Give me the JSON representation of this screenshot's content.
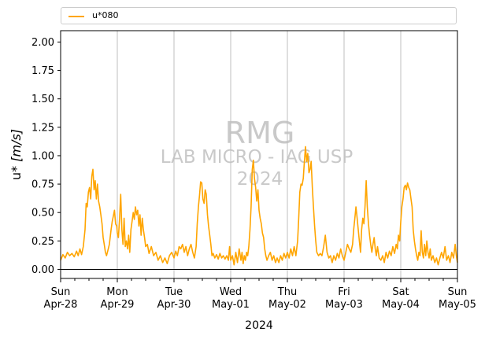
{
  "chart_data": {
    "type": "line",
    "ylabel_prefix": "u* ",
    "ylabel_unit": "[m/s]",
    "xlabel": "2024",
    "ylim": [
      -0.08,
      2.1
    ],
    "xlim_days": [
      "2024-04-28",
      "2024-05-05"
    ],
    "yticks": [
      "0.00",
      "0.25",
      "0.50",
      "0.75",
      "1.00",
      "1.25",
      "1.50",
      "1.75",
      "2.00"
    ],
    "ytick_values": [
      0,
      0.25,
      0.5,
      0.75,
      1.0,
      1.25,
      1.5,
      1.75,
      2.0
    ],
    "xticks": [
      {
        "day": "Sun",
        "date": "Apr-28"
      },
      {
        "day": "Mon",
        "date": "Apr-29"
      },
      {
        "day": "Tue",
        "date": "Apr-30"
      },
      {
        "day": "Wed",
        "date": "May-01"
      },
      {
        "day": "Thu",
        "date": "May-02"
      },
      {
        "day": "Fri",
        "date": "May-03"
      },
      {
        "day": "Sat",
        "date": "May-04"
      },
      {
        "day": "Sun",
        "date": "May-05"
      }
    ],
    "grid": "vertical-at-midnight",
    "zero_line": true,
    "legend_placement": "top-above-plot",
    "watermark": {
      "line1": "RMG",
      "line2": "LAB MICRO - IAG USP",
      "line3": "2024"
    },
    "series": [
      {
        "name": "u*080",
        "color": "#FFA500",
        "x_unit": "days since 2024-04-28 00:00",
        "points": [
          [
            0.0,
            0.08
          ],
          [
            0.04,
            0.13
          ],
          [
            0.08,
            0.1
          ],
          [
            0.12,
            0.15
          ],
          [
            0.16,
            0.12
          ],
          [
            0.2,
            0.14
          ],
          [
            0.24,
            0.11
          ],
          [
            0.28,
            0.16
          ],
          [
            0.31,
            0.12
          ],
          [
            0.34,
            0.18
          ],
          [
            0.37,
            0.13
          ],
          [
            0.4,
            0.2
          ],
          [
            0.43,
            0.35
          ],
          [
            0.45,
            0.58
          ],
          [
            0.47,
            0.55
          ],
          [
            0.49,
            0.68
          ],
          [
            0.51,
            0.72
          ],
          [
            0.53,
            0.62
          ],
          [
            0.55,
            0.82
          ],
          [
            0.57,
            0.88
          ],
          [
            0.59,
            0.7
          ],
          [
            0.61,
            0.78
          ],
          [
            0.63,
            0.62
          ],
          [
            0.65,
            0.75
          ],
          [
            0.67,
            0.6
          ],
          [
            0.69,
            0.55
          ],
          [
            0.71,
            0.48
          ],
          [
            0.73,
            0.4
          ],
          [
            0.75,
            0.28
          ],
          [
            0.77,
            0.22
          ],
          [
            0.79,
            0.15
          ],
          [
            0.81,
            0.12
          ],
          [
            0.83,
            0.16
          ],
          [
            0.86,
            0.22
          ],
          [
            0.89,
            0.35
          ],
          [
            0.91,
            0.42
          ],
          [
            0.93,
            0.47
          ],
          [
            0.95,
            0.52
          ],
          [
            0.97,
            0.4
          ],
          [
            0.99,
            0.38
          ],
          [
            1.0,
            0.32
          ],
          [
            1.02,
            0.28
          ],
          [
            1.04,
            0.45
          ],
          [
            1.06,
            0.66
          ],
          [
            1.08,
            0.35
          ],
          [
            1.1,
            0.22
          ],
          [
            1.12,
            0.45
          ],
          [
            1.14,
            0.2
          ],
          [
            1.16,
            0.25
          ],
          [
            1.18,
            0.18
          ],
          [
            1.2,
            0.3
          ],
          [
            1.22,
            0.15
          ],
          [
            1.24,
            0.35
          ],
          [
            1.26,
            0.42
          ],
          [
            1.28,
            0.5
          ],
          [
            1.3,
            0.44
          ],
          [
            1.32,
            0.55
          ],
          [
            1.34,
            0.48
          ],
          [
            1.36,
            0.52
          ],
          [
            1.38,
            0.38
          ],
          [
            1.4,
            0.48
          ],
          [
            1.42,
            0.3
          ],
          [
            1.44,
            0.45
          ],
          [
            1.46,
            0.35
          ],
          [
            1.48,
            0.28
          ],
          [
            1.5,
            0.2
          ],
          [
            1.53,
            0.22
          ],
          [
            1.56,
            0.14
          ],
          [
            1.6,
            0.2
          ],
          [
            1.64,
            0.12
          ],
          [
            1.68,
            0.15
          ],
          [
            1.72,
            0.08
          ],
          [
            1.76,
            0.12
          ],
          [
            1.8,
            0.06
          ],
          [
            1.84,
            0.1
          ],
          [
            1.88,
            0.05
          ],
          [
            1.92,
            0.12
          ],
          [
            1.96,
            0.15
          ],
          [
            2.0,
            0.1
          ],
          [
            2.03,
            0.16
          ],
          [
            2.06,
            0.12
          ],
          [
            2.09,
            0.2
          ],
          [
            2.12,
            0.18
          ],
          [
            2.15,
            0.22
          ],
          [
            2.18,
            0.15
          ],
          [
            2.21,
            0.2
          ],
          [
            2.24,
            0.12
          ],
          [
            2.27,
            0.18
          ],
          [
            2.3,
            0.22
          ],
          [
            2.33,
            0.15
          ],
          [
            2.36,
            0.1
          ],
          [
            2.39,
            0.2
          ],
          [
            2.41,
            0.4
          ],
          [
            2.43,
            0.55
          ],
          [
            2.45,
            0.65
          ],
          [
            2.47,
            0.77
          ],
          [
            2.49,
            0.76
          ],
          [
            2.51,
            0.62
          ],
          [
            2.53,
            0.58
          ],
          [
            2.55,
            0.7
          ],
          [
            2.57,
            0.66
          ],
          [
            2.59,
            0.48
          ],
          [
            2.61,
            0.38
          ],
          [
            2.63,
            0.3
          ],
          [
            2.65,
            0.22
          ],
          [
            2.67,
            0.12
          ],
          [
            2.69,
            0.14
          ],
          [
            2.72,
            0.1
          ],
          [
            2.75,
            0.13
          ],
          [
            2.78,
            0.09
          ],
          [
            2.81,
            0.14
          ],
          [
            2.84,
            0.1
          ],
          [
            2.87,
            0.12
          ],
          [
            2.9,
            0.09
          ],
          [
            2.93,
            0.12
          ],
          [
            2.96,
            0.08
          ],
          [
            2.98,
            0.2
          ],
          [
            3.0,
            0.08
          ],
          [
            3.03,
            0.12
          ],
          [
            3.06,
            0.04
          ],
          [
            3.09,
            0.15
          ],
          [
            3.12,
            0.06
          ],
          [
            3.15,
            0.18
          ],
          [
            3.18,
            0.08
          ],
          [
            3.2,
            0.15
          ],
          [
            3.22,
            0.05
          ],
          [
            3.24,
            0.12
          ],
          [
            3.26,
            0.08
          ],
          [
            3.28,
            0.15
          ],
          [
            3.3,
            0.12
          ],
          [
            3.32,
            0.2
          ],
          [
            3.34,
            0.35
          ],
          [
            3.36,
            0.55
          ],
          [
            3.38,
            0.88
          ],
          [
            3.4,
            0.96
          ],
          [
            3.42,
            0.8
          ],
          [
            3.44,
            0.72
          ],
          [
            3.46,
            0.6
          ],
          [
            3.48,
            0.7
          ],
          [
            3.5,
            0.52
          ],
          [
            3.52,
            0.45
          ],
          [
            3.54,
            0.4
          ],
          [
            3.56,
            0.32
          ],
          [
            3.58,
            0.28
          ],
          [
            3.6,
            0.18
          ],
          [
            3.62,
            0.12
          ],
          [
            3.64,
            0.08
          ],
          [
            3.67,
            0.12
          ],
          [
            3.7,
            0.15
          ],
          [
            3.73,
            0.08
          ],
          [
            3.76,
            0.12
          ],
          [
            3.79,
            0.06
          ],
          [
            3.82,
            0.1
          ],
          [
            3.85,
            0.06
          ],
          [
            3.88,
            0.12
          ],
          [
            3.91,
            0.08
          ],
          [
            3.94,
            0.14
          ],
          [
            3.97,
            0.1
          ],
          [
            4.0,
            0.15
          ],
          [
            4.03,
            0.1
          ],
          [
            4.06,
            0.18
          ],
          [
            4.09,
            0.12
          ],
          [
            4.12,
            0.2
          ],
          [
            4.15,
            0.12
          ],
          [
            4.18,
            0.25
          ],
          [
            4.2,
            0.45
          ],
          [
            4.22,
            0.68
          ],
          [
            4.24,
            0.75
          ],
          [
            4.26,
            0.74
          ],
          [
            4.28,
            0.8
          ],
          [
            4.3,
            0.95
          ],
          [
            4.32,
            1.08
          ],
          [
            4.34,
            0.95
          ],
          [
            4.36,
            1.02
          ],
          [
            4.38,
            0.85
          ],
          [
            4.4,
            0.88
          ],
          [
            4.42,
            0.95
          ],
          [
            4.44,
            0.72
          ],
          [
            4.46,
            0.55
          ],
          [
            4.48,
            0.38
          ],
          [
            4.5,
            0.25
          ],
          [
            4.52,
            0.15
          ],
          [
            4.55,
            0.12
          ],
          [
            4.58,
            0.14
          ],
          [
            4.61,
            0.12
          ],
          [
            4.64,
            0.2
          ],
          [
            4.67,
            0.3
          ],
          [
            4.7,
            0.15
          ],
          [
            4.73,
            0.1
          ],
          [
            4.76,
            0.12
          ],
          [
            4.79,
            0.06
          ],
          [
            4.82,
            0.12
          ],
          [
            4.85,
            0.08
          ],
          [
            4.88,
            0.14
          ],
          [
            4.91,
            0.1
          ],
          [
            4.94,
            0.18
          ],
          [
            4.97,
            0.12
          ],
          [
            5.0,
            0.08
          ],
          [
            5.03,
            0.15
          ],
          [
            5.06,
            0.22
          ],
          [
            5.09,
            0.18
          ],
          [
            5.12,
            0.15
          ],
          [
            5.15,
            0.22
          ],
          [
            5.17,
            0.35
          ],
          [
            5.19,
            0.45
          ],
          [
            5.21,
            0.55
          ],
          [
            5.23,
            0.45
          ],
          [
            5.25,
            0.35
          ],
          [
            5.27,
            0.25
          ],
          [
            5.29,
            0.15
          ],
          [
            5.31,
            0.35
          ],
          [
            5.33,
            0.45
          ],
          [
            5.35,
            0.4
          ],
          [
            5.37,
            0.55
          ],
          [
            5.39,
            0.78
          ],
          [
            5.41,
            0.55
          ],
          [
            5.43,
            0.4
          ],
          [
            5.45,
            0.3
          ],
          [
            5.47,
            0.22
          ],
          [
            5.49,
            0.15
          ],
          [
            5.51,
            0.22
          ],
          [
            5.53,
            0.28
          ],
          [
            5.55,
            0.18
          ],
          [
            5.57,
            0.12
          ],
          [
            5.59,
            0.2
          ],
          [
            5.62,
            0.1
          ],
          [
            5.65,
            0.08
          ],
          [
            5.68,
            0.12
          ],
          [
            5.71,
            0.06
          ],
          [
            5.74,
            0.15
          ],
          [
            5.77,
            0.1
          ],
          [
            5.8,
            0.16
          ],
          [
            5.83,
            0.12
          ],
          [
            5.86,
            0.2
          ],
          [
            5.89,
            0.14
          ],
          [
            5.92,
            0.22
          ],
          [
            5.94,
            0.18
          ],
          [
            5.96,
            0.3
          ],
          [
            5.98,
            0.25
          ],
          [
            6.0,
            0.42
          ],
          [
            6.02,
            0.55
          ],
          [
            6.04,
            0.62
          ],
          [
            6.06,
            0.72
          ],
          [
            6.08,
            0.74
          ],
          [
            6.1,
            0.7
          ],
          [
            6.12,
            0.76
          ],
          [
            6.14,
            0.72
          ],
          [
            6.16,
            0.7
          ],
          [
            6.18,
            0.62
          ],
          [
            6.2,
            0.55
          ],
          [
            6.22,
            0.35
          ],
          [
            6.24,
            0.25
          ],
          [
            6.26,
            0.18
          ],
          [
            6.28,
            0.12
          ],
          [
            6.3,
            0.08
          ],
          [
            6.32,
            0.15
          ],
          [
            6.34,
            0.12
          ],
          [
            6.36,
            0.34
          ],
          [
            6.38,
            0.15
          ],
          [
            6.4,
            0.1
          ],
          [
            6.42,
            0.22
          ],
          [
            6.44,
            0.12
          ],
          [
            6.46,
            0.25
          ],
          [
            6.48,
            0.15
          ],
          [
            6.5,
            0.1
          ],
          [
            6.52,
            0.18
          ],
          [
            6.54,
            0.08
          ],
          [
            6.57,
            0.12
          ],
          [
            6.6,
            0.06
          ],
          [
            6.63,
            0.1
          ],
          [
            6.66,
            0.04
          ],
          [
            6.69,
            0.1
          ],
          [
            6.72,
            0.15
          ],
          [
            6.75,
            0.1
          ],
          [
            6.78,
            0.2
          ],
          [
            6.81,
            0.08
          ],
          [
            6.84,
            0.12
          ],
          [
            6.87,
            0.06
          ],
          [
            6.9,
            0.15
          ],
          [
            6.93,
            0.1
          ],
          [
            6.96,
            0.22
          ],
          [
            6.98,
            0.12
          ],
          [
            7.0,
            0.06
          ]
        ]
      }
    ]
  }
}
